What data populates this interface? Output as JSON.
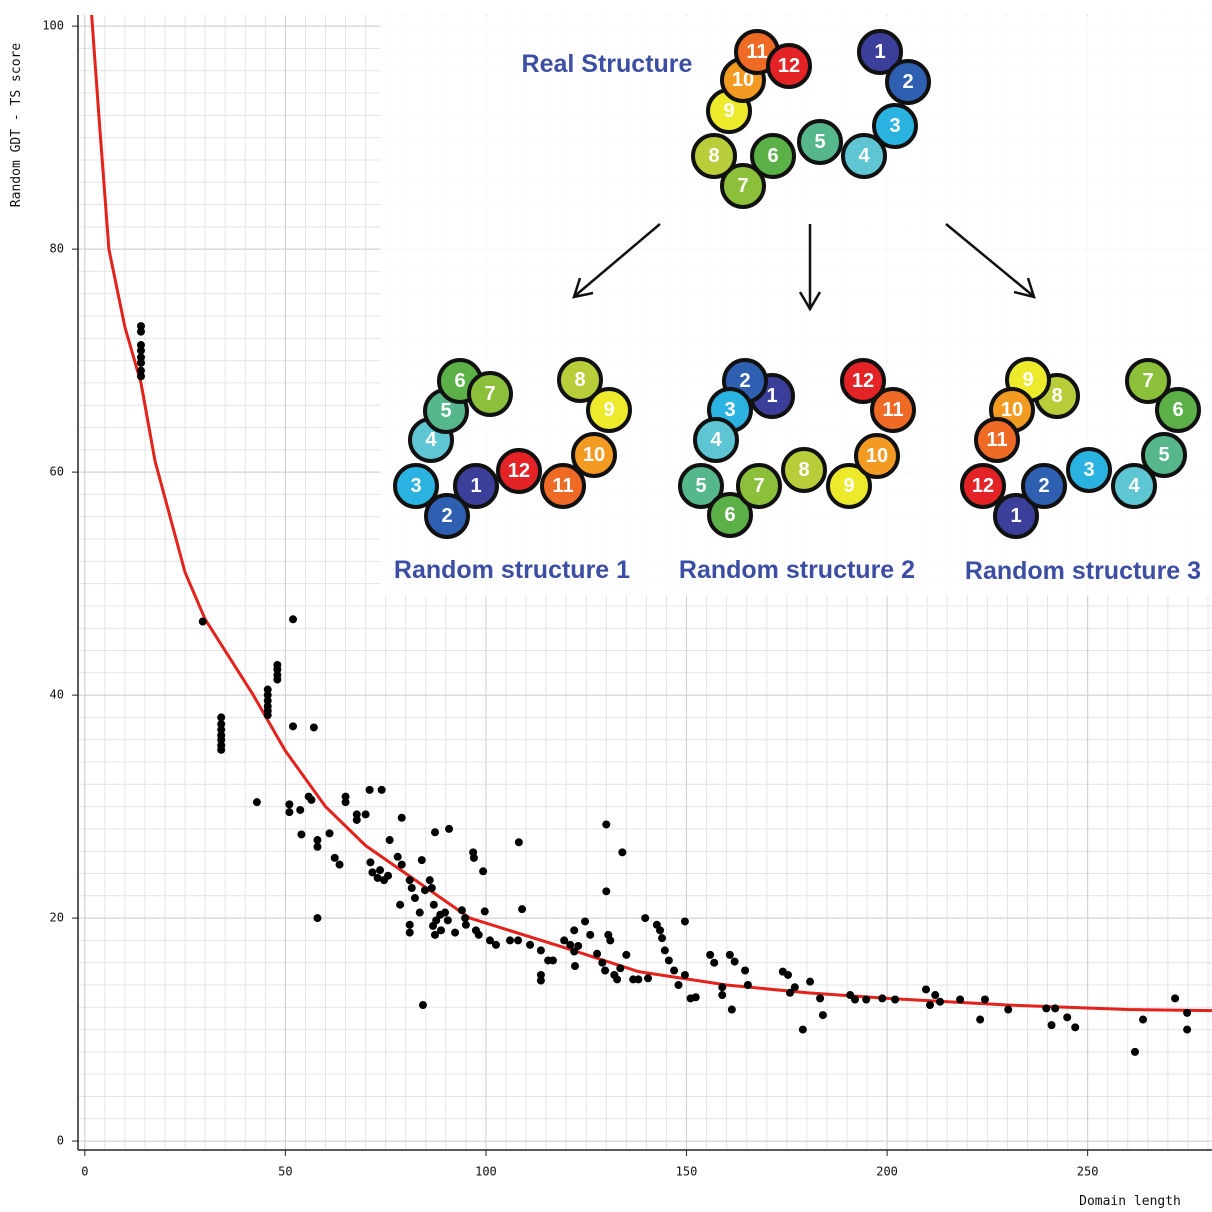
{
  "chart_data": {
    "type": "scatter",
    "x_label": "Domain length",
    "y_label": "Random GDT - TS score",
    "xlim": [
      -1.7,
      281
    ],
    "ylim": [
      -0.8,
      101
    ],
    "xticks": [
      0,
      50,
      100,
      150,
      200,
      250
    ],
    "yticks": [
      0,
      20,
      40,
      60,
      80,
      100
    ],
    "grid": true,
    "series": [
      {
        "type": "scatter",
        "color": "#000000",
        "x": [
          14,
          14,
          14,
          14,
          14,
          14,
          14,
          14,
          29.4,
          34,
          34,
          34,
          34,
          34,
          34,
          34,
          42.9,
          45.6,
          45.6,
          45.6,
          45.6,
          45.6,
          45.6,
          48,
          48,
          48,
          48,
          51.9,
          51.9,
          57.1,
          51,
          51,
          53.7,
          54,
          55.8,
          56.5,
          58,
          58,
          58,
          61,
          62.3,
          63.5,
          65,
          65,
          67.8,
          67.8,
          71,
          74,
          70,
          71.2,
          71.7,
          73,
          73.6,
          74.6,
          75.6,
          76,
          79,
          78,
          79,
          78.6,
          81,
          81.5,
          82.3,
          81,
          81,
          84,
          84.3,
          83.5,
          84.8,
          86,
          86.5,
          87,
          86.8,
          87.3,
          87.6,
          88.6,
          88.8,
          87.3,
          90.8,
          89.8,
          90.5,
          92.3,
          94,
          94.8,
          95,
          96.8,
          97,
          97.5,
          98.2,
          99.3,
          99.7,
          101,
          102.5,
          106,
          108.2,
          109,
          108,
          111,
          113.7,
          113.7,
          113.7,
          115.5,
          116.7,
          119.5,
          121,
          122,
          122,
          123,
          122.2,
          124.7,
          126,
          127.7,
          129,
          130,
          130,
          130.5,
          131,
          129.7,
          132,
          132.7,
          134,
          133.5,
          135,
          136.7,
          138,
          139.7,
          140.4,
          142.6,
          143.4,
          143.9,
          144.6,
          145.6,
          146.9,
          148,
          149.6,
          149.6,
          151,
          152.3,
          155.9,
          156.9,
          158.9,
          158.9,
          160.8,
          162,
          161.3,
          164.6,
          165.3,
          174,
          175.3,
          175.8,
          177,
          179,
          180.8,
          183.3,
          184,
          190.8,
          192,
          194.8,
          198.8,
          202,
          209.7,
          210.7,
          212,
          213.2,
          218.2,
          223.2,
          224.4,
          230.2,
          239.7,
          241,
          241.9,
          244.9,
          246.9,
          261.8,
          263.8,
          271.8,
          274.8,
          274.8
        ],
        "values": [
          73.1,
          72.6,
          71.4,
          70.9,
          70.3,
          69.8,
          69.1,
          68.6,
          46.6,
          38,
          37.4,
          36.9,
          36.4,
          36,
          35.5,
          35.1,
          30.4,
          40.5,
          40,
          39.5,
          39,
          38.6,
          38.2,
          42.7,
          42.3,
          41.8,
          41.4,
          46.8,
          37.2,
          37.1,
          30.2,
          29.5,
          29.7,
          27.5,
          30.9,
          30.6,
          27,
          26.4,
          20,
          27.6,
          25.4,
          24.8,
          30.9,
          30.4,
          28.8,
          29.3,
          31.5,
          31.5,
          29.3,
          25,
          24.1,
          23.6,
          24.3,
          23.4,
          23.8,
          27,
          29,
          25.5,
          24.8,
          21.2,
          23.4,
          22.7,
          21.8,
          19.4,
          18.7,
          25.2,
          12.2,
          20.5,
          22.5,
          23.4,
          22.7,
          21.2,
          19.3,
          18.5,
          19.8,
          20.3,
          18.9,
          27.7,
          28,
          20.5,
          19.8,
          18.7,
          20.7,
          20,
          19.4,
          25.9,
          25.4,
          18.9,
          18.5,
          24.2,
          20.6,
          18,
          17.6,
          18,
          26.8,
          20.8,
          18,
          17.6,
          17.1,
          14.9,
          14.4,
          16.2,
          16.2,
          18,
          17.6,
          18.9,
          17,
          17.5,
          15.7,
          19.7,
          18.5,
          16.8,
          16,
          28.4,
          22.4,
          18.5,
          18,
          15.3,
          14.9,
          14.5,
          25.9,
          15.5,
          16.7,
          14.5,
          14.5,
          20,
          14.6,
          19.4,
          18.9,
          18.2,
          17.1,
          16.2,
          15.3,
          14,
          19.7,
          14.9,
          12.8,
          12.9,
          16.7,
          16,
          13.8,
          13.1,
          16.7,
          16.1,
          11.8,
          15.3,
          14,
          15.2,
          14.9,
          13.3,
          13.8,
          10,
          14.3,
          12.8,
          11.3,
          13.1,
          12.7,
          12.7,
          12.8,
          12.7,
          13.6,
          12.2,
          13.1,
          12.5,
          12.7,
          10.9,
          12.7,
          11.8,
          11.9,
          10.4,
          11.9,
          11.1,
          10.2,
          8,
          10.9,
          12.8,
          11.5,
          10
        ]
      },
      {
        "type": "line",
        "color": "#e3221b",
        "x": [
          1.7,
          3.5,
          6,
          10,
          14,
          17.5,
          25,
          30,
          42,
          50,
          60,
          70,
          80,
          96,
          120,
          138,
          160,
          180,
          200,
          230,
          260,
          281
        ],
        "values": [
          101,
          92,
          80,
          73,
          68,
          61,
          51,
          46.8,
          40,
          35,
          30,
          26.5,
          24,
          20,
          17.3,
          15.2,
          14,
          13.3,
          12.8,
          12.2,
          11.8,
          11.7
        ]
      }
    ]
  },
  "diagram": {
    "bead_colors": [
      "#3b3f9a",
      "#2f5fb0",
      "#2ab2e0",
      "#5ec6d3",
      "#56b68c",
      "#5cb048",
      "#8cc03a",
      "#b9cc3a",
      "#ecea2a",
      "#f39a23",
      "#ee6a25",
      "#e42326"
    ],
    "structures": [
      {
        "label": "Real Structure",
        "beads": [
          "1",
          "2",
          "3",
          "4",
          "5",
          "6",
          "7",
          "8",
          "9",
          "10",
          "11",
          "12"
        ]
      },
      {
        "label": "Random structure 1",
        "beads": [
          "1",
          "2",
          "3",
          "4",
          "5",
          "6",
          "7",
          "8",
          "9",
          "10",
          "11",
          "12"
        ]
      },
      {
        "label": "Random structure 2",
        "beads": [
          "1",
          "2",
          "3",
          "4",
          "5",
          "6",
          "7",
          "8",
          "9",
          "10",
          "11",
          "12"
        ]
      },
      {
        "label": "Random structure 3",
        "beads": [
          "1",
          "2",
          "3",
          "4",
          "5",
          "6",
          "7",
          "8",
          "9",
          "10",
          "11",
          "12"
        ]
      }
    ]
  }
}
